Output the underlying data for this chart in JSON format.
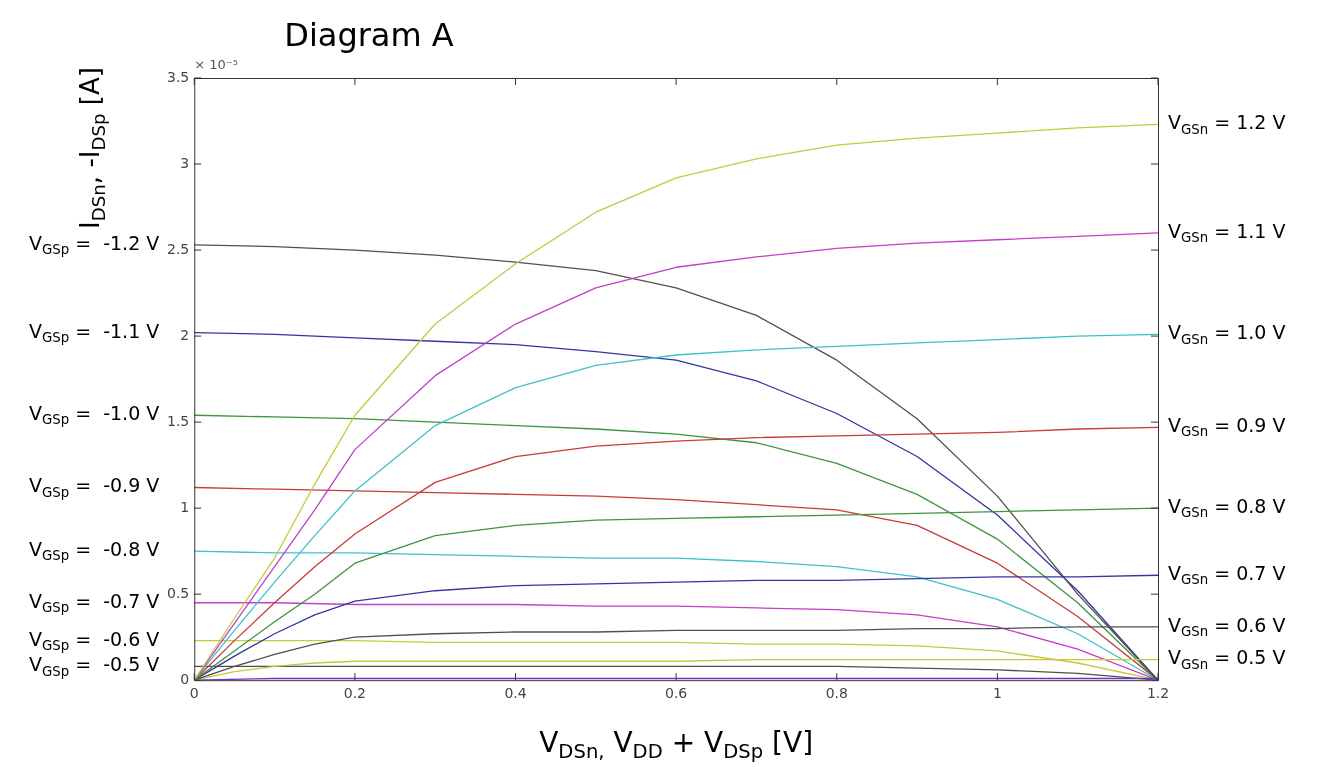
{
  "chart_data": {
    "type": "line",
    "title": "Diagram A",
    "xlabel": "V$_{DSn,}$ V$_{DD}$ + V$_{DSp}$ [V]",
    "ylabel": "I$_{DSn}$, -I$_{DSp}$ [A]",
    "annotations": [
      "× 10⁻⁵"
    ],
    "xlim": [
      0,
      1.2
    ],
    "ylim": [
      0,
      3.5
    ],
    "xticks": [
      0,
      0.2,
      0.4,
      0.6,
      0.8,
      1,
      1.2
    ],
    "yticks": [
      0,
      0.5,
      1,
      1.5,
      2,
      2.5,
      3,
      3.5
    ],
    "grid": false,
    "legend": false,
    "series": [
      {
        "name": "V$_{GSn}$ = 1.2 V",
        "color": "#c8c83c",
        "x": [
          0,
          0.05,
          0.1,
          0.15,
          0.2,
          0.3,
          0.4,
          0.5,
          0.6,
          0.7,
          0.8,
          0.9,
          1,
          1.1,
          1.2
        ],
        "values": [
          0,
          0.36,
          0.71,
          1.14,
          1.54,
          2.07,
          2.42,
          2.72,
          2.92,
          3.03,
          3.11,
          3.15,
          3.18,
          3.21,
          3.23
        ]
      },
      {
        "name": "V$_{GSn}$ = 1.1 V",
        "color": "#c040c8",
        "x": [
          0,
          0.05,
          0.1,
          0.15,
          0.2,
          0.3,
          0.4,
          0.5,
          0.6,
          0.7,
          0.8,
          0.9,
          1,
          1.1,
          1.2
        ],
        "values": [
          0,
          0.33,
          0.66,
          0.99,
          1.34,
          1.77,
          2.07,
          2.28,
          2.4,
          2.46,
          2.51,
          2.54,
          2.56,
          2.58,
          2.6
        ]
      },
      {
        "name": "V$_{GSn}$ = 1.0 V",
        "color": "#40c0c8",
        "x": [
          0,
          0.05,
          0.1,
          0.15,
          0.2,
          0.3,
          0.4,
          0.5,
          0.6,
          0.7,
          0.8,
          0.9,
          1,
          1.1,
          1.2
        ],
        "values": [
          0,
          0.29,
          0.57,
          0.84,
          1.1,
          1.48,
          1.7,
          1.83,
          1.89,
          1.92,
          1.94,
          1.96,
          1.98,
          2,
          2.01
        ]
      },
      {
        "name": "V$_{GSn}$ = 0.9 V",
        "color": "#c83c3c",
        "x": [
          0,
          0.05,
          0.1,
          0.15,
          0.2,
          0.3,
          0.4,
          0.5,
          0.6,
          0.7,
          0.8,
          0.9,
          1,
          1.1,
          1.2
        ],
        "values": [
          0,
          0.23,
          0.45,
          0.66,
          0.85,
          1.15,
          1.3,
          1.36,
          1.39,
          1.41,
          1.42,
          1.43,
          1.44,
          1.46,
          1.47
        ]
      },
      {
        "name": "V$_{GSn}$ = 0.8 V",
        "color": "#3c963c",
        "x": [
          0,
          0.05,
          0.1,
          0.15,
          0.2,
          0.3,
          0.4,
          0.5,
          0.6,
          0.7,
          0.8,
          0.9,
          1,
          1.1,
          1.2
        ],
        "values": [
          0,
          0.17,
          0.34,
          0.5,
          0.68,
          0.84,
          0.9,
          0.93,
          0.94,
          0.95,
          0.96,
          0.97,
          0.98,
          0.99,
          1
        ]
      },
      {
        "name": "V$_{GSn}$ = 0.7 V",
        "color": "#3434a0",
        "x": [
          0,
          0.05,
          0.1,
          0.15,
          0.2,
          0.3,
          0.4,
          0.5,
          0.6,
          0.7,
          0.8,
          0.9,
          1,
          1.1,
          1.2
        ],
        "values": [
          0,
          0.14,
          0.27,
          0.38,
          0.46,
          0.52,
          0.55,
          0.56,
          0.57,
          0.58,
          0.58,
          0.59,
          0.6,
          0.6,
          0.61
        ]
      },
      {
        "name": "V$_{GSn}$ = 0.6 V",
        "color": "#505050",
        "x": [
          0,
          0.05,
          0.1,
          0.15,
          0.2,
          0.3,
          0.4,
          0.5,
          0.6,
          0.7,
          0.8,
          0.9,
          1,
          1.1,
          1.2
        ],
        "values": [
          0,
          0.08,
          0.15,
          0.21,
          0.25,
          0.27,
          0.28,
          0.28,
          0.29,
          0.29,
          0.29,
          0.3,
          0.3,
          0.31,
          0.31
        ]
      },
      {
        "name": "V$_{GSn}$ = 0.5 V",
        "color": "#c8c83c",
        "x": [
          0,
          0.05,
          0.1,
          0.15,
          0.2,
          0.3,
          0.4,
          0.5,
          0.6,
          0.7,
          0.8,
          0.9,
          1,
          1.1,
          1.2
        ],
        "values": [
          0,
          0.05,
          0.08,
          0.1,
          0.11,
          0.11,
          0.11,
          0.11,
          0.11,
          0.12,
          0.12,
          0.12,
          0.12,
          0.12,
          0.12
        ]
      },
      {
        "color": "#7030c8",
        "x": [
          0,
          0.1,
          0.2,
          0.4,
          0.6,
          0.8,
          1,
          1.2
        ],
        "values": [
          0,
          0.01,
          0.01,
          0.01,
          0.01,
          0.01,
          0.01,
          0.01
        ]
      },
      {
        "name": "V$_{GSp}$ =  -1.2 V",
        "color": "#505050",
        "x": [
          0,
          0.1,
          0.2,
          0.3,
          0.4,
          0.5,
          0.6,
          0.7,
          0.8,
          0.9,
          1,
          1.1,
          1.2
        ],
        "values": [
          2.53,
          2.52,
          2.5,
          2.47,
          2.43,
          2.38,
          2.28,
          2.12,
          1.86,
          1.52,
          1.07,
          0.5,
          0
        ]
      },
      {
        "name": "V$_{GSp}$ =  -1.1 V",
        "color": "#3434a0",
        "x": [
          0,
          0.1,
          0.2,
          0.3,
          0.4,
          0.5,
          0.6,
          0.7,
          0.8,
          0.9,
          1,
          1.1,
          1.2
        ],
        "values": [
          2.02,
          2.01,
          1.99,
          1.97,
          1.95,
          1.91,
          1.86,
          1.74,
          1.55,
          1.3,
          0.96,
          0.52,
          0
        ]
      },
      {
        "name": "V$_{GSp}$ =  -1.0 V",
        "color": "#3c963c",
        "x": [
          0,
          0.1,
          0.2,
          0.3,
          0.4,
          0.5,
          0.6,
          0.7,
          0.8,
          0.9,
          1,
          1.1,
          1.2
        ],
        "values": [
          1.54,
          1.53,
          1.52,
          1.5,
          1.48,
          1.46,
          1.43,
          1.38,
          1.26,
          1.08,
          0.82,
          0.45,
          0
        ]
      },
      {
        "name": "V$_{GSp}$ =  -0.9 V",
        "color": "#c83c3c",
        "x": [
          0,
          0.1,
          0.2,
          0.3,
          0.4,
          0.5,
          0.6,
          0.7,
          0.8,
          0.9,
          1,
          1.1,
          1.2
        ],
        "values": [
          1.12,
          1.11,
          1.1,
          1.09,
          1.08,
          1.07,
          1.05,
          1.02,
          0.99,
          0.9,
          0.68,
          0.37,
          0
        ]
      },
      {
        "name": "V$_{GSp}$ =  -0.8 V",
        "color": "#40c0c8",
        "x": [
          0,
          0.1,
          0.2,
          0.3,
          0.4,
          0.5,
          0.6,
          0.7,
          0.8,
          0.9,
          1,
          1.1,
          1.2
        ],
        "values": [
          0.75,
          0.74,
          0.74,
          0.73,
          0.72,
          0.71,
          0.71,
          0.69,
          0.66,
          0.6,
          0.47,
          0.27,
          0
        ]
      },
      {
        "name": "V$_{GSp}$ =  -0.7 V",
        "color": "#c040c8",
        "x": [
          0,
          0.1,
          0.2,
          0.3,
          0.4,
          0.5,
          0.6,
          0.7,
          0.8,
          0.9,
          1,
          1.1,
          1.2
        ],
        "values": [
          0.45,
          0.45,
          0.44,
          0.44,
          0.44,
          0.43,
          0.43,
          0.42,
          0.41,
          0.38,
          0.31,
          0.18,
          0
        ]
      },
      {
        "name": "V$_{GSp}$ =  -0.6 V",
        "color": "#c8c83c",
        "x": [
          0,
          0.1,
          0.2,
          0.3,
          0.4,
          0.5,
          0.6,
          0.7,
          0.8,
          0.9,
          1,
          1.1,
          1.2
        ],
        "values": [
          0.23,
          0.23,
          0.23,
          0.22,
          0.22,
          0.22,
          0.22,
          0.21,
          0.21,
          0.2,
          0.17,
          0.1,
          0
        ]
      },
      {
        "name": "V$_{GSp}$ =  -0.5 V",
        "color": "#505050",
        "x": [
          0,
          0.1,
          0.2,
          0.3,
          0.4,
          0.5,
          0.6,
          0.7,
          0.8,
          0.9,
          1,
          1.1,
          1.2
        ],
        "values": [
          0.08,
          0.08,
          0.08,
          0.08,
          0.08,
          0.08,
          0.08,
          0.08,
          0.08,
          0.07,
          0.06,
          0.04,
          0
        ]
      }
    ]
  }
}
